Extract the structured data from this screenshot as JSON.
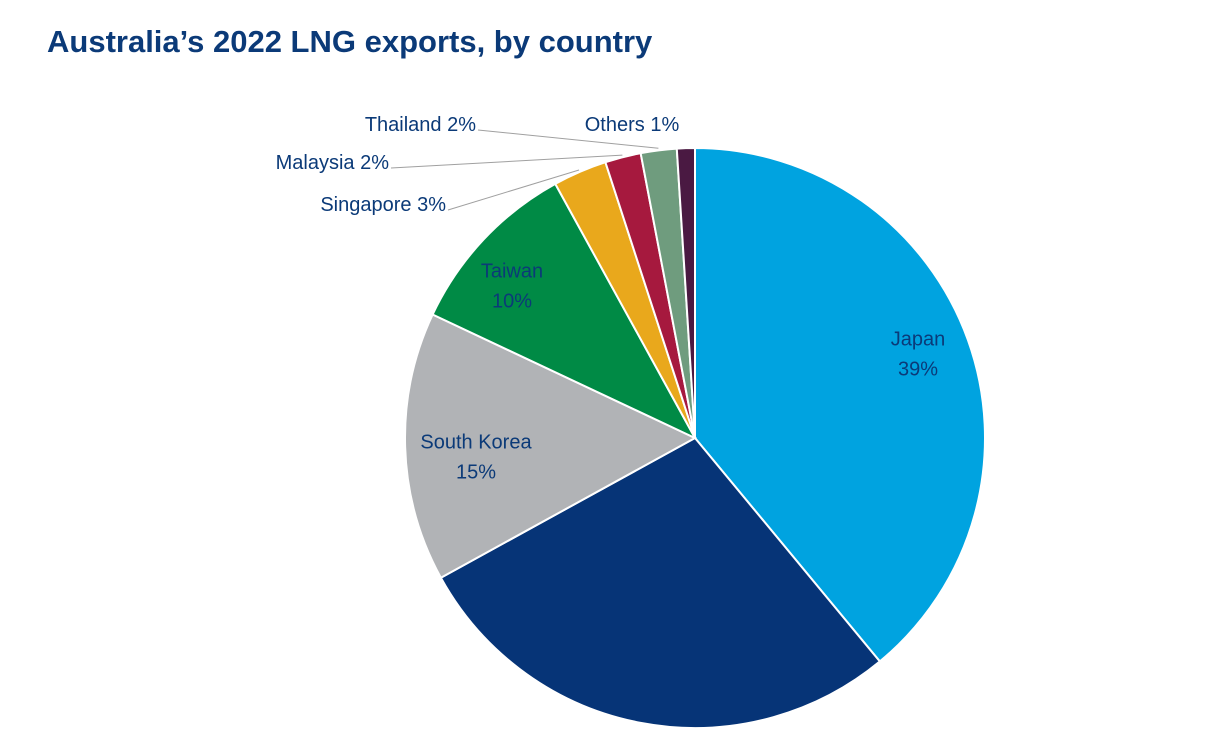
{
  "chart_data": {
    "type": "pie",
    "title": "Australia’s 2022 LNG exports, by country",
    "categories": [
      "Japan",
      null,
      "South Korea",
      "Taiwan",
      "Singapore",
      "Malaysia",
      "Thailand",
      "Others"
    ],
    "values": [
      39,
      28,
      15,
      10,
      3,
      2,
      2,
      1
    ],
    "value_labels": [
      "39%",
      null,
      "15%",
      "10%",
      "3%",
      "2%",
      "2%",
      "1%"
    ],
    "colors": [
      "#00a3e0",
      "#063477",
      "#b1b3b6",
      "#008a45",
      "#e9a81c",
      "#a6193e",
      "#6f9c7e",
      "#4a1942"
    ]
  }
}
